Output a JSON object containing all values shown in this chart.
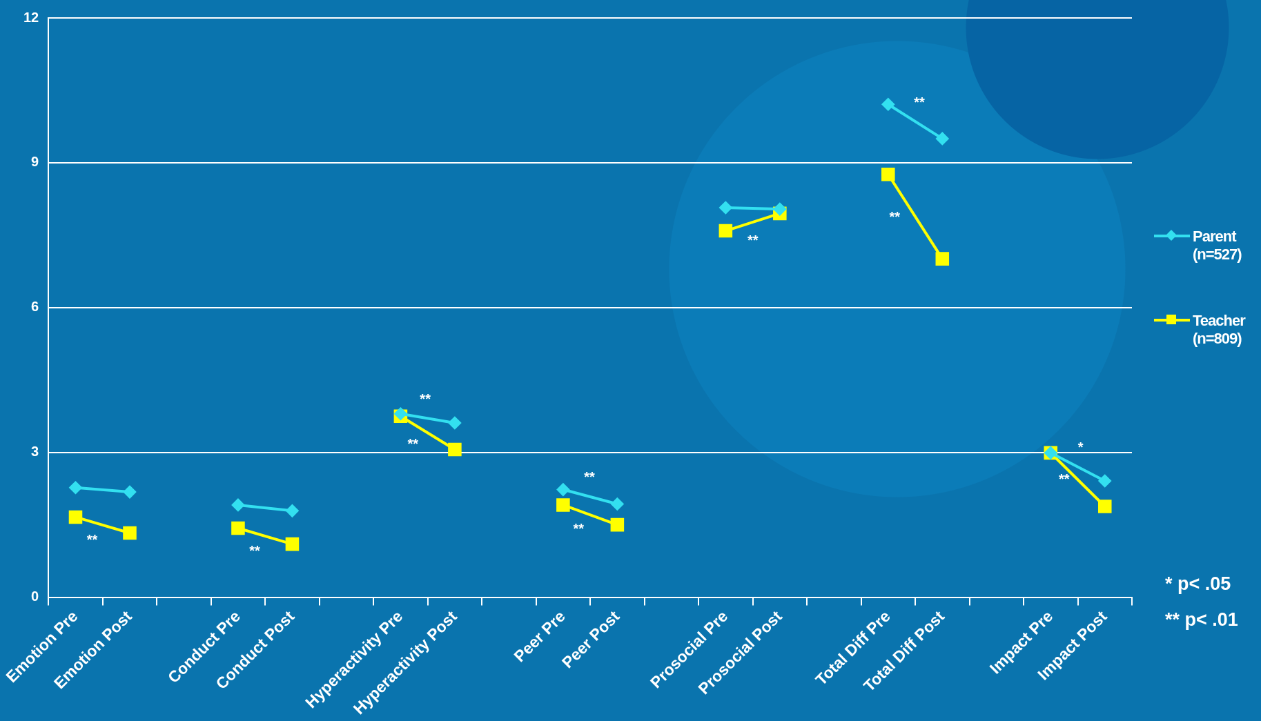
{
  "chart_data": {
    "type": "line",
    "categories": [
      "Emotion Pre",
      "Emotion Post",
      null,
      "Conduct Pre",
      "Conduct Post",
      null,
      "Hyperactivity Pre",
      "Hyperactivity Post",
      null,
      "Peer Pre",
      "Peer Post",
      null,
      "Prosocial Pre",
      "Prosocial Post",
      null,
      "Total Diff Pre",
      "Total Diff Post",
      null,
      "Impact Pre",
      "Impact Post"
    ],
    "series": [
      {
        "name": "Parent\n(n=527)",
        "color": "#33e0f0",
        "marker": "diamond",
        "values": [
          2.27,
          2.18,
          null,
          1.91,
          1.79,
          null,
          3.8,
          3.61,
          null,
          2.23,
          1.93,
          null,
          8.07,
          8.04,
          null,
          10.21,
          9.5,
          null,
          2.99,
          2.41
        ]
      },
      {
        "name": "Teacher\n(n=809)",
        "color": "#ffff00",
        "marker": "square",
        "values": [
          1.66,
          1.33,
          null,
          1.43,
          1.1,
          null,
          3.75,
          3.06,
          null,
          1.91,
          1.5,
          null,
          7.59,
          7.95,
          null,
          8.76,
          7.01,
          null,
          2.99,
          1.88
        ]
      }
    ],
    "ylim": [
      0,
      12
    ],
    "yticks": [
      0,
      3,
      6,
      9,
      12
    ],
    "grid": "y",
    "legend": "right",
    "annotations": [
      {
        "text": "**",
        "x": "Emotion Pre",
        "y": 1.66
      },
      {
        "text": "**",
        "x": "Conduct Pre",
        "y": 1.43
      },
      {
        "text": "**",
        "x": "Hyperactivity Pre",
        "y": 3.8
      },
      {
        "text": "**",
        "x": "Hyperactivity Pre",
        "y": 3.75
      },
      {
        "text": "**",
        "x": "Peer Pre",
        "y": 2.23
      },
      {
        "text": "**",
        "x": "Peer Pre",
        "y": 1.91
      },
      {
        "text": "**",
        "x": "Prosocial Pre",
        "y": 7.59
      },
      {
        "text": "**",
        "x": "Total Diff Pre",
        "y": 10.21
      },
      {
        "text": "**",
        "x": "Total Diff Pre",
        "y": 8.76
      },
      {
        "text": "*",
        "x": "Impact Pre",
        "y": 2.99
      },
      {
        "text": "**",
        "x": "Impact Pre",
        "y": 2.99
      },
      "* p< .05",
      "** p< .01"
    ]
  }
}
